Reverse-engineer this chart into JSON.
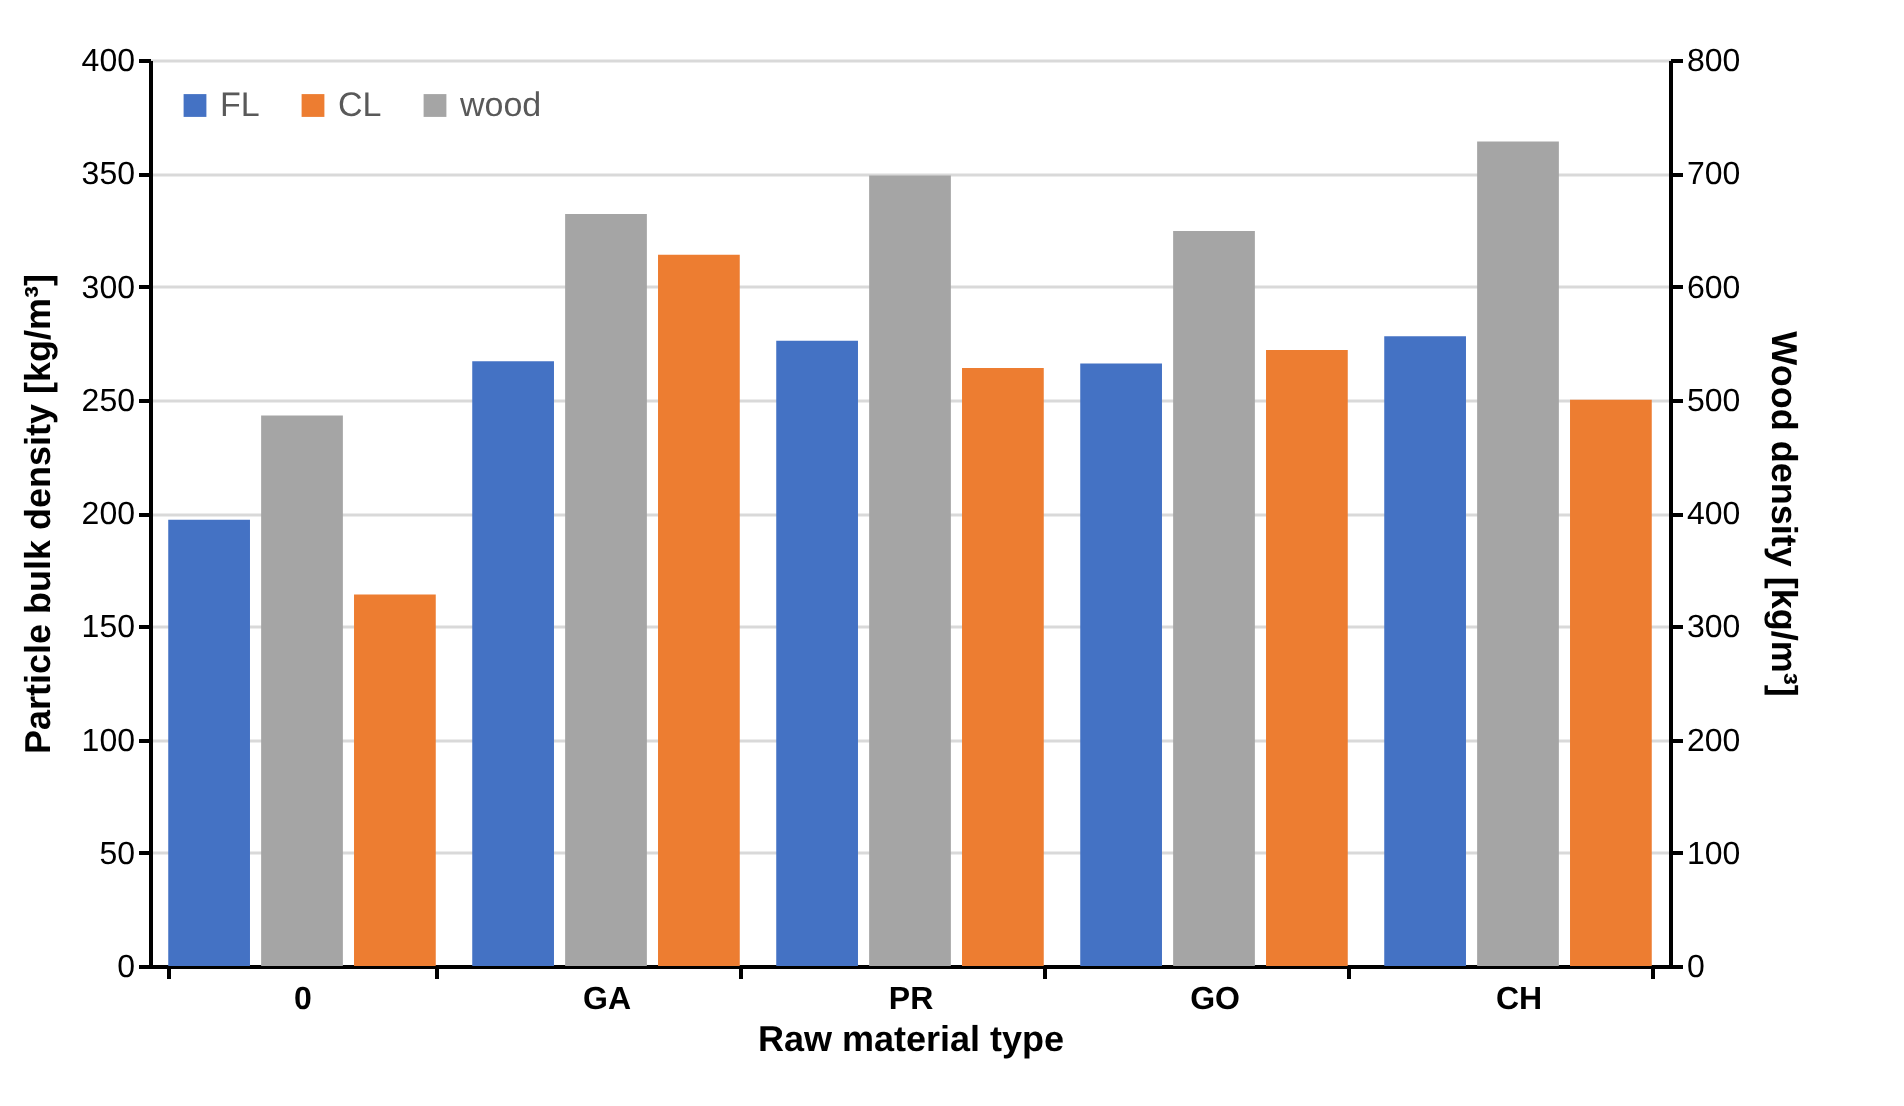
{
  "chart_data": {
    "type": "bar",
    "xlabel": "Raw material type",
    "ylabel": "Particle bulk density [kg/m³]",
    "y2label": "Wood density [kg/m³]",
    "categories": [
      "0",
      "GA",
      "PR",
      "GO",
      "CH"
    ],
    "series": [
      {
        "name": "FL",
        "color": "#4472c4",
        "values": [
          197,
          267,
          276,
          266,
          278
        ]
      },
      {
        "name": "CL",
        "color": "#ed7d31",
        "values": [
          164,
          314,
          264,
          272,
          250
        ]
      },
      {
        "name": "wood",
        "color": "#a5a5a5",
        "axis": "y2",
        "values": [
          486,
          664,
          698,
          649,
          728
        ]
      }
    ],
    "ylim": [
      0,
      400
    ],
    "yticks": [
      0,
      50,
      100,
      150,
      200,
      250,
      300,
      350,
      400
    ],
    "y2lim": [
      0,
      800
    ],
    "y2ticks": [
      0,
      100,
      200,
      300,
      400,
      500,
      600,
      700,
      800
    ],
    "grid": "y",
    "legend": "top left"
  }
}
